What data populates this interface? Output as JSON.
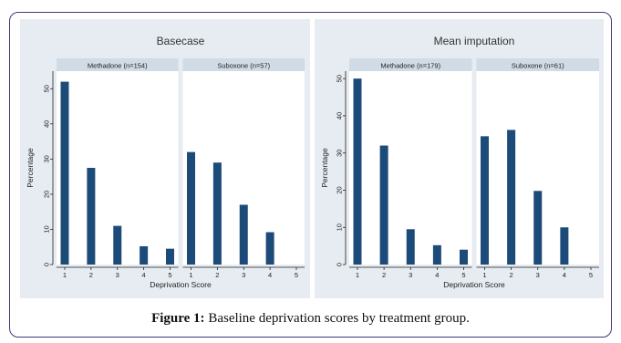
{
  "caption": {
    "label": "Figure 1:",
    "text": " Baseline deprivation scores by treatment group."
  },
  "colors": {
    "bar": "#1c4a79",
    "panel_bg": "#e6ecf1",
    "plot_bg": "#ffffff",
    "strip_bg": "#d0dbe6",
    "border": "#3d3b7a",
    "axis": "#222222"
  },
  "chart_data": [
    {
      "type": "bar",
      "title": "Basecase",
      "xlabel": "Deprivation Score",
      "ylabel": "Percentage",
      "ylim": [
        0,
        55
      ],
      "yticks": [
        0,
        10,
        20,
        30,
        40,
        50
      ],
      "xticks": [
        1,
        2,
        3,
        4,
        5
      ],
      "facets": [
        {
          "name": "Methadone (n=154)",
          "x": [
            1,
            2,
            3,
            4,
            5
          ],
          "values": [
            52,
            27.5,
            11,
            5.2,
            4.5
          ]
        },
        {
          "name": "Suboxone (n=57)",
          "x": [
            1,
            2,
            3,
            4
          ],
          "values": [
            32,
            29,
            17,
            9.2
          ]
        }
      ]
    },
    {
      "type": "bar",
      "title": "Mean imputation",
      "xlabel": "Deprivation Score",
      "ylabel": "Percentage",
      "ylim": [
        0,
        52
      ],
      "yticks": [
        0,
        10,
        20,
        30,
        40,
        50
      ],
      "xticks": [
        1,
        2,
        3,
        4,
        5
      ],
      "facets": [
        {
          "name": "Methadone (n=179)",
          "x": [
            1,
            2,
            3,
            4,
            5
          ],
          "values": [
            50,
            32,
            9.5,
            5.2,
            4
          ]
        },
        {
          "name": "Suboxone (n=61)",
          "x": [
            1,
            2,
            3,
            4
          ],
          "values": [
            34.5,
            36.2,
            19.8,
            10
          ]
        }
      ]
    }
  ]
}
